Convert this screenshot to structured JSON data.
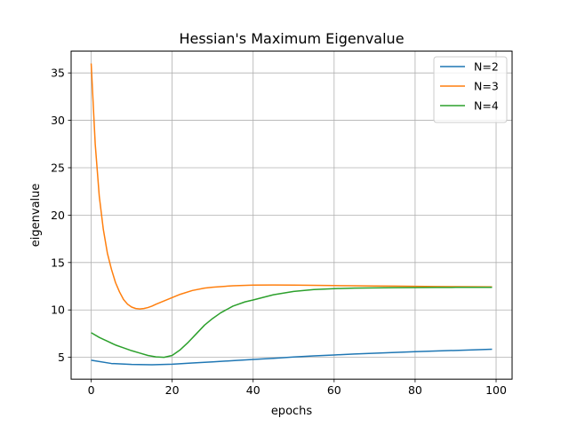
{
  "chart_data": {
    "type": "line",
    "title": "Hessian's Maximum Eigenvalue",
    "xlabel": "epochs",
    "ylabel": "eigenvalue",
    "xlim": [
      -4.95,
      103.95
    ],
    "ylim": [
      2.7,
      37.3
    ],
    "xticks": [
      0,
      20,
      40,
      60,
      80,
      100
    ],
    "yticks": [
      5,
      10,
      15,
      20,
      25,
      30,
      35
    ],
    "grid": true,
    "legend": "top-right",
    "series": [
      {
        "name": "N=2",
        "color": "#1f77b4",
        "x": [
          0,
          5,
          10,
          15,
          20,
          25,
          30,
          35,
          40,
          45,
          50,
          55,
          60,
          65,
          70,
          75,
          80,
          85,
          90,
          95,
          99
        ],
        "y": [
          4.7,
          4.35,
          4.25,
          4.22,
          4.28,
          4.4,
          4.52,
          4.65,
          4.78,
          4.9,
          5.03,
          5.15,
          5.25,
          5.35,
          5.43,
          5.52,
          5.6,
          5.67,
          5.73,
          5.8,
          5.85
        ]
      },
      {
        "name": "N=3",
        "color": "#ff7f0e",
        "x": [
          0,
          1,
          2,
          3,
          4,
          5,
          6,
          7,
          8,
          9,
          10,
          11,
          12,
          13,
          14,
          15,
          16,
          18,
          20,
          22,
          25,
          28,
          30,
          35,
          40,
          45,
          50,
          55,
          60,
          65,
          70,
          75,
          80,
          85,
          90,
          95,
          99
        ],
        "y": [
          36.0,
          27.5,
          22.0,
          18.5,
          16.0,
          14.3,
          12.9,
          11.9,
          11.1,
          10.6,
          10.3,
          10.15,
          10.1,
          10.15,
          10.25,
          10.4,
          10.6,
          10.95,
          11.3,
          11.65,
          12.05,
          12.3,
          12.4,
          12.55,
          12.62,
          12.63,
          12.62,
          12.6,
          12.57,
          12.55,
          12.53,
          12.51,
          12.49,
          12.47,
          12.45,
          12.44,
          12.43
        ]
      },
      {
        "name": "N=4",
        "color": "#2ca02c",
        "x": [
          0,
          2,
          4,
          6,
          8,
          10,
          12,
          14,
          16,
          18,
          20,
          22,
          24,
          26,
          28,
          30,
          32,
          35,
          38,
          40,
          45,
          50,
          55,
          60,
          65,
          70,
          75,
          80,
          85,
          90,
          95,
          99
        ],
        "y": [
          7.6,
          7.1,
          6.7,
          6.3,
          6.0,
          5.7,
          5.45,
          5.2,
          5.05,
          5.0,
          5.2,
          5.8,
          6.6,
          7.5,
          8.4,
          9.1,
          9.7,
          10.4,
          10.85,
          11.05,
          11.6,
          11.95,
          12.15,
          12.25,
          12.3,
          12.33,
          12.35,
          12.36,
          12.37,
          12.38,
          12.38,
          12.38
        ]
      }
    ]
  }
}
